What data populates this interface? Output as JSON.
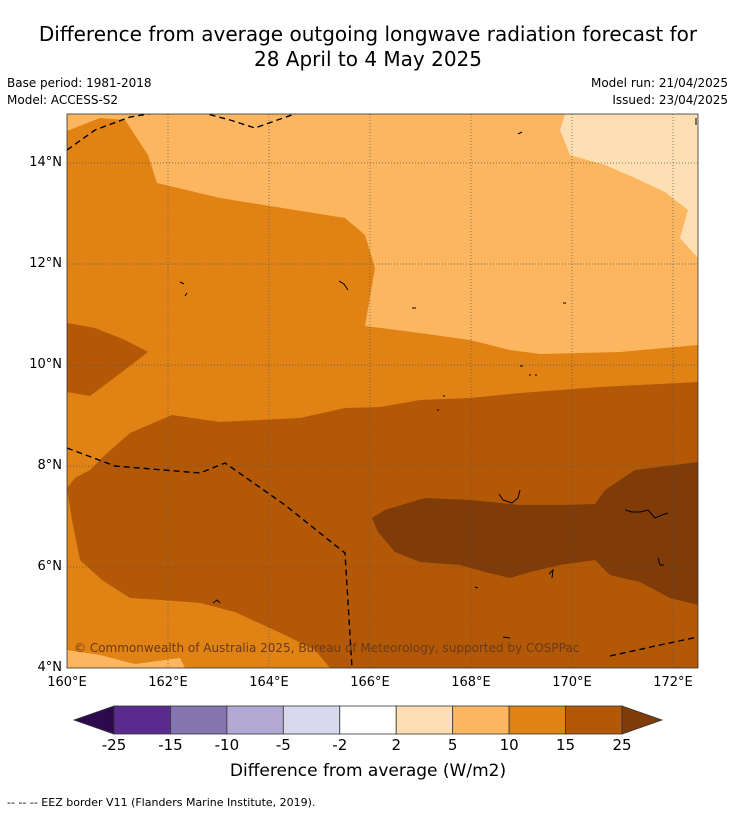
{
  "title_line1": "Difference from average outgoing longwave radiation forecast for",
  "title_line2": "28 April to 4 May 2025",
  "base_period": "Base period: 1981-2018",
  "model": "Model: ACCESS-S2",
  "model_run": "Model run: 21/04/2025",
  "issued": "Issued: 23/04/2025",
  "copyright": "© Commonwealth of Australia 2025, Bureau of Meteorology, supported by COSPPac",
  "x_ticks": [
    "160°E",
    "162°E",
    "164°E",
    "166°E",
    "168°E",
    "170°E",
    "172°E"
  ],
  "y_ticks": [
    "14°N",
    "12°N",
    "10°N",
    "8°N",
    "6°N",
    "4°N"
  ],
  "colorbar": {
    "label": "Difference from average (W/m2)",
    "ticks": [
      "-25",
      "-15",
      "-10",
      "-5",
      "-2",
      "2",
      "5",
      "10",
      "15",
      "25"
    ],
    "colors": [
      "#5a2a8f",
      "#8474b0",
      "#b2a9d3",
      "#d8d9ec",
      "#ffffff",
      "#fedfb3",
      "#fbb65f",
      "#e08214",
      "#b35806"
    ],
    "under_color": "#2d0a4e",
    "over_color": "#7f3b08"
  },
  "footer": "--  --  -- EEZ border V11 (Flanders Marine Institute, 2019)."
}
